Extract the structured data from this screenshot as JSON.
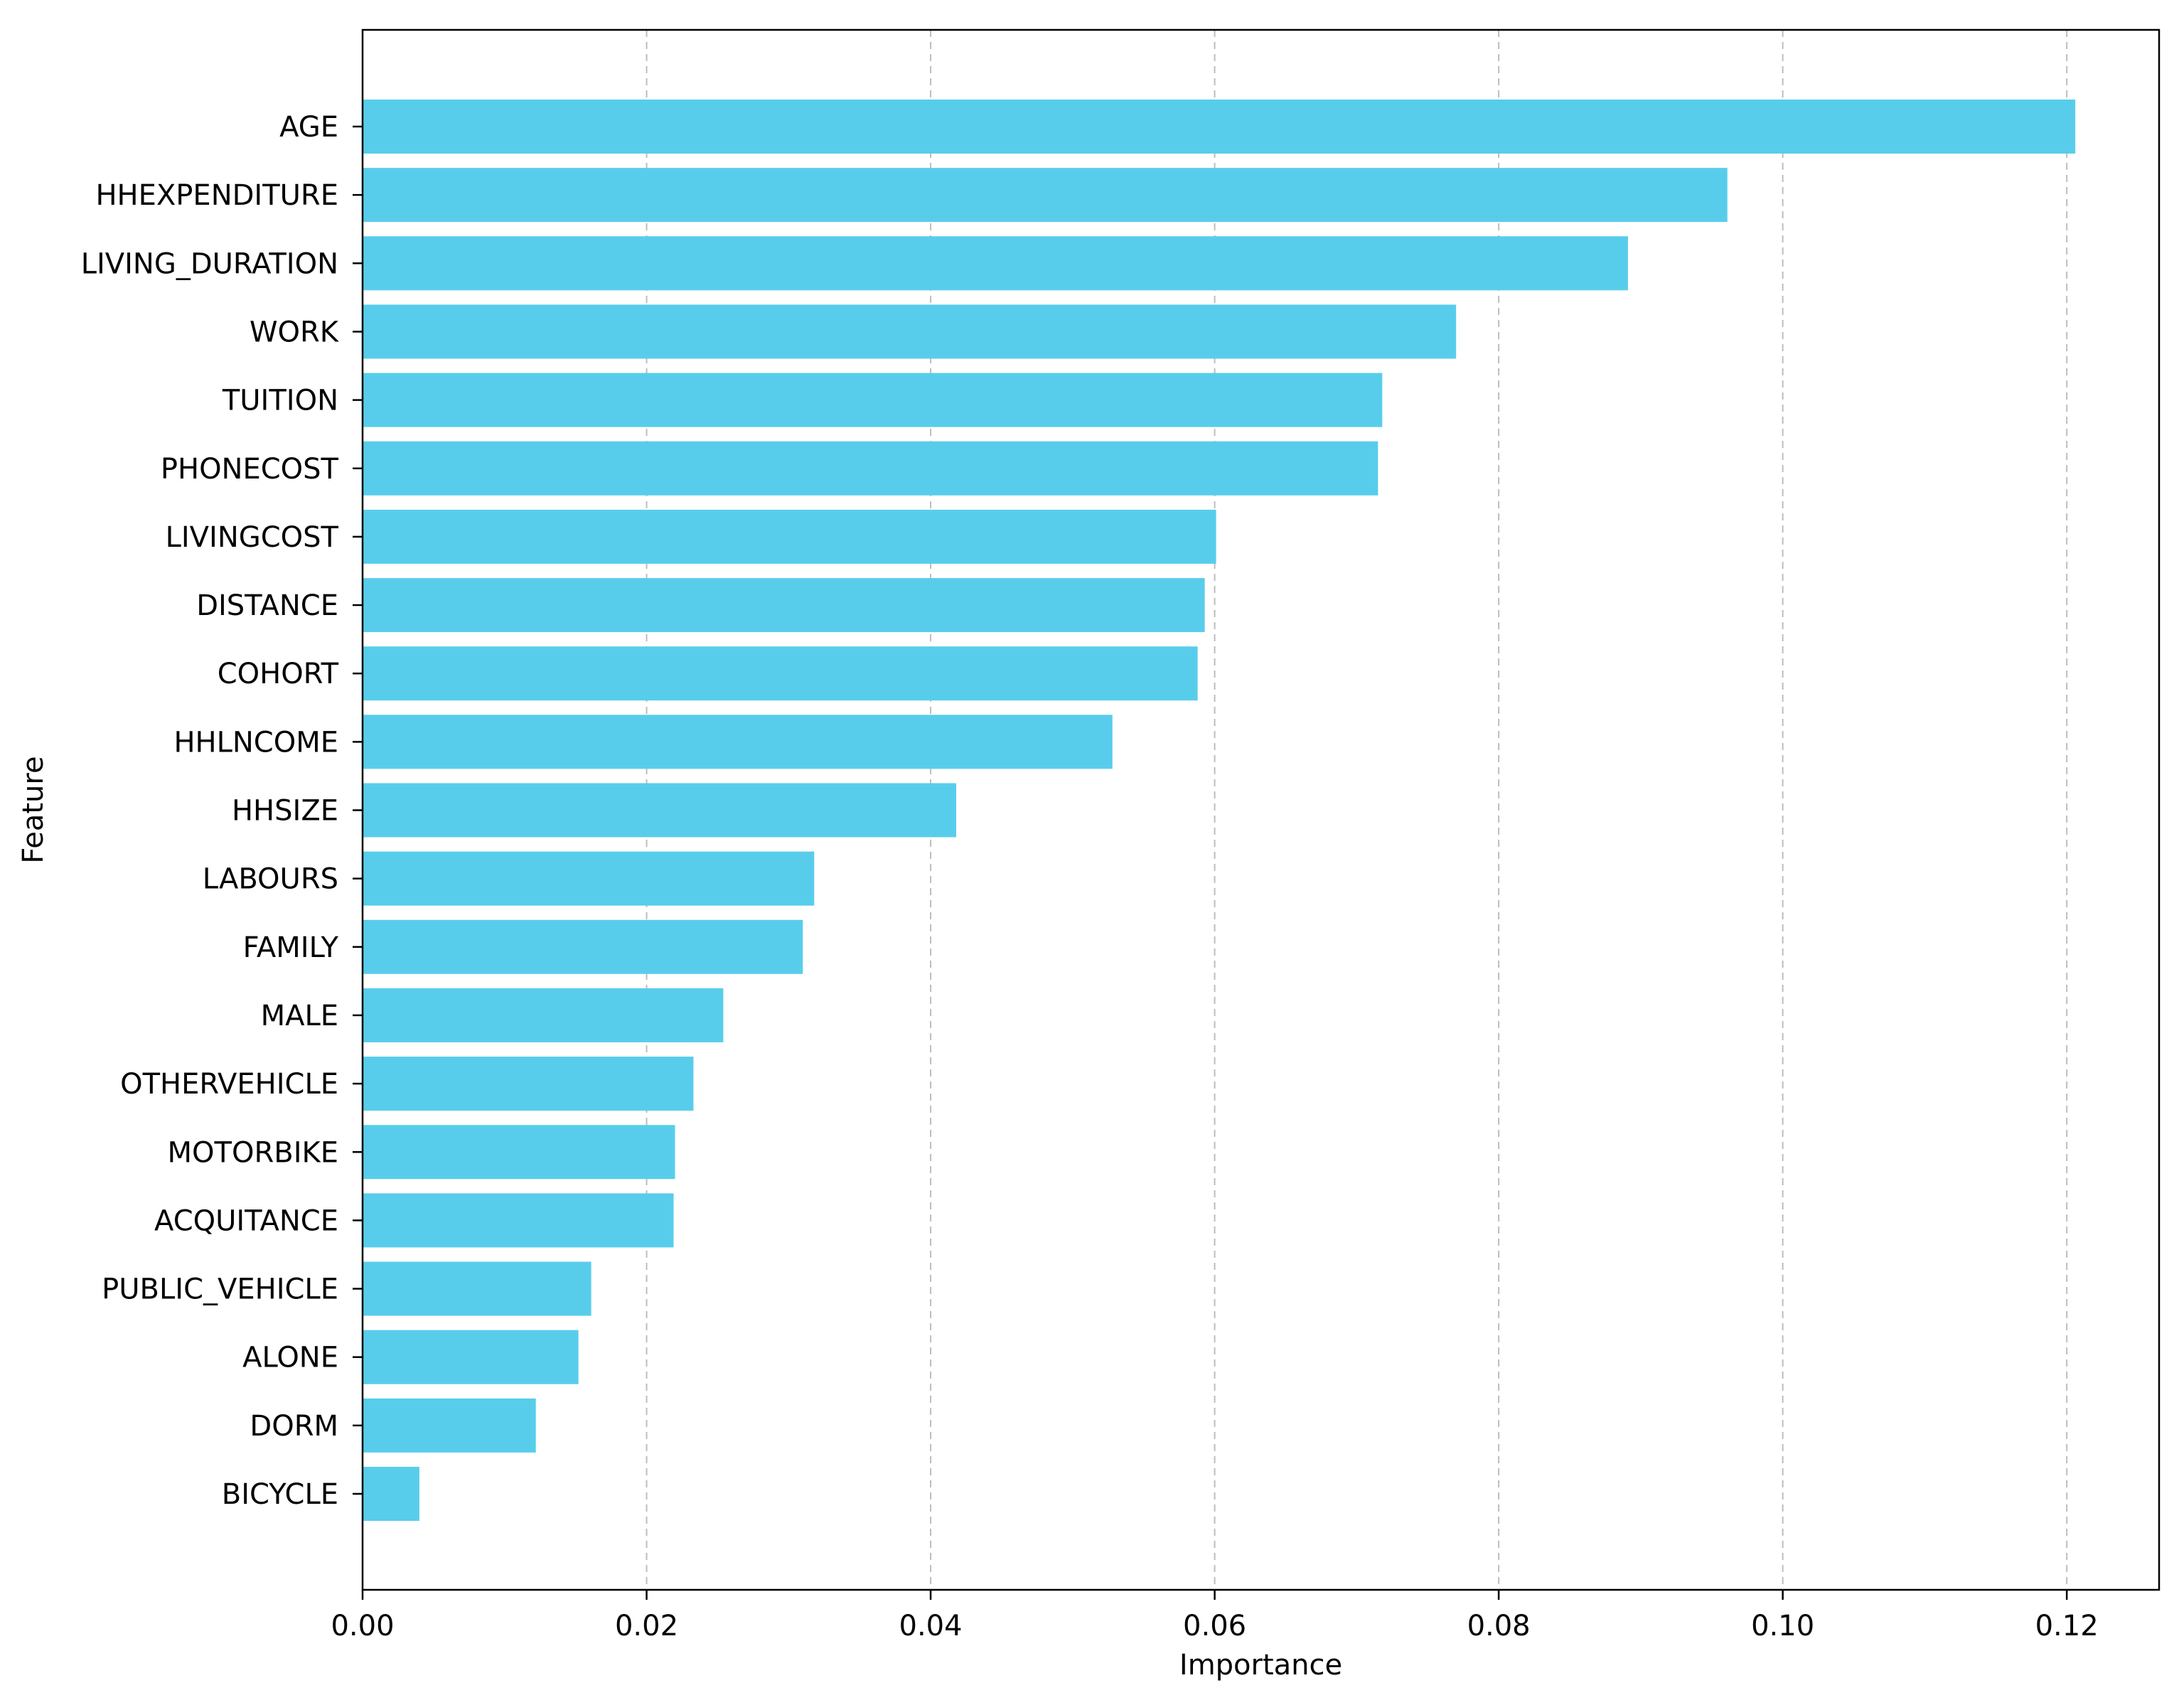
{
  "chart_data": {
    "type": "bar",
    "orientation": "horizontal",
    "xlabel": "Importance",
    "ylabel": "Feature",
    "xlim": [
      0.0,
      0.1265
    ],
    "xticks": [
      0.0,
      0.02,
      0.04,
      0.06,
      0.08,
      0.1,
      0.12
    ],
    "xtick_labels": [
      "0.00",
      "0.02",
      "0.04",
      "0.06",
      "0.08",
      "0.10",
      "0.12"
    ],
    "grid": "x, dashed",
    "bar_color": "#58CDEB",
    "categories": [
      "AGE",
      "HHEXPENDITURE",
      "LIVING_DURATION",
      "WORK",
      "TUITION",
      "PHONECOST",
      "LIVINGCOST",
      "DISTANCE",
      "COHORT",
      "HHLNCOME",
      "HHSIZE",
      "LABOURS",
      "FAMILY",
      "MALE",
      "OTHERVEHICLE",
      "MOTORBIKE",
      "ACQUITANCE",
      "PUBLIC_VEHICLE",
      "ALONE",
      "DORM",
      "BICYCLE"
    ],
    "values": [
      0.1206,
      0.0961,
      0.0891,
      0.077,
      0.0718,
      0.0715,
      0.0601,
      0.0593,
      0.0588,
      0.0528,
      0.0418,
      0.0318,
      0.031,
      0.0254,
      0.0233,
      0.022,
      0.0219,
      0.0161,
      0.0152,
      0.0122,
      0.004
    ]
  }
}
